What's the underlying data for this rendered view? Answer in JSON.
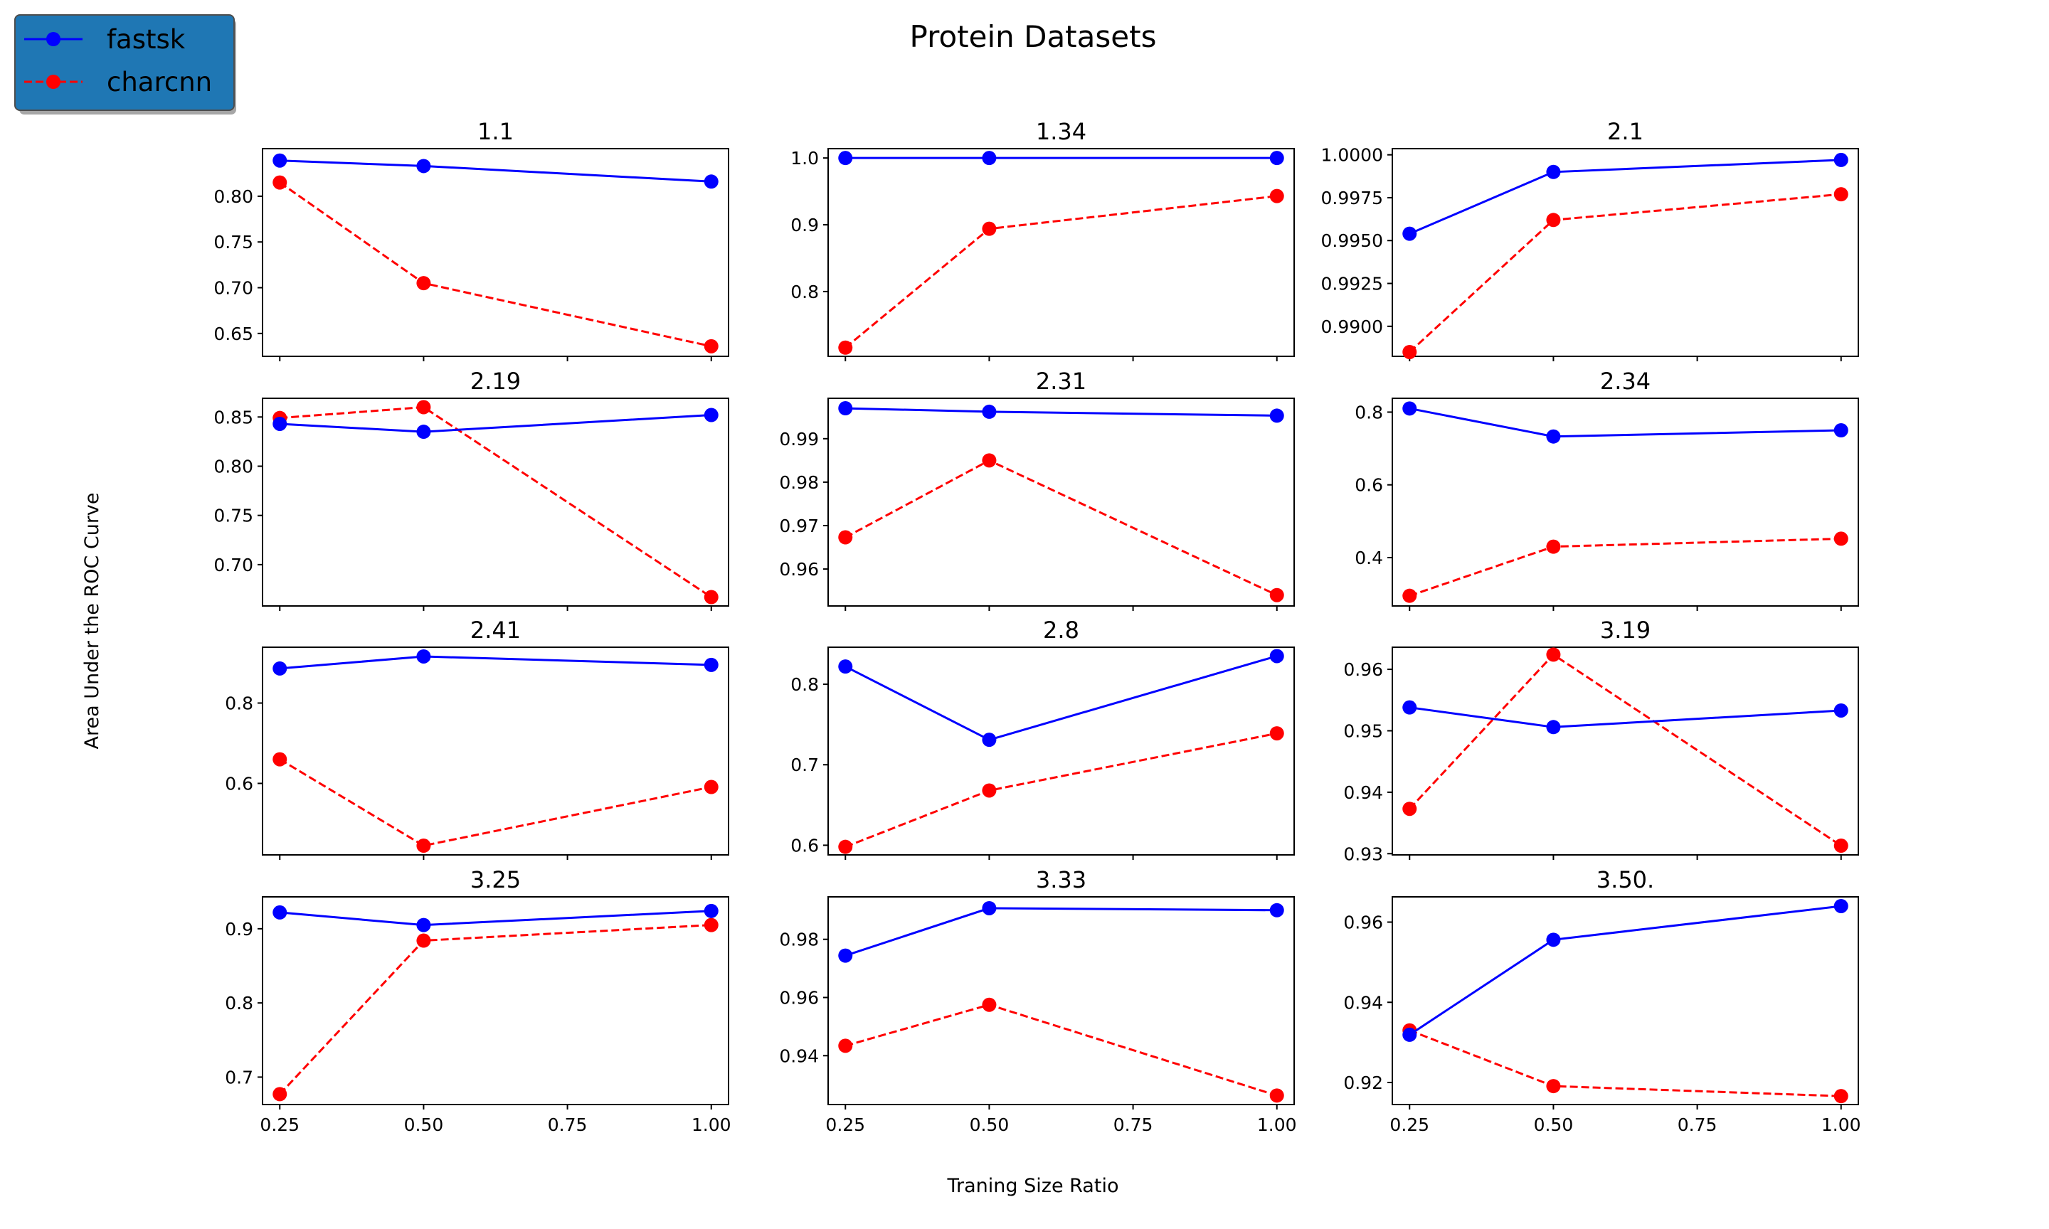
{
  "chart_data": {
    "type": "line",
    "title": "Protein Datasets",
    "xlabel": "Traning Size Ratio",
    "ylabel": "Area Under the ROC Curve",
    "x": [
      0.25,
      0.5,
      1.0
    ],
    "xlim": [
      0.22,
      1.03
    ],
    "xticks": [
      0.25,
      0.5,
      0.75,
      1.0
    ],
    "xtick_labels": [
      "0.25",
      "0.50",
      "0.75",
      "1.00"
    ],
    "legend": {
      "placement": "top-left",
      "entries": [
        {
          "name": "fastsk",
          "color": "#0000ff",
          "style": "solid"
        },
        {
          "name": "charcnn",
          "color": "#ff0000",
          "style": "dashed"
        }
      ]
    },
    "subplots": [
      {
        "title": "1.1",
        "ylim": [
          0.625,
          0.852
        ],
        "yticks": [
          0.65,
          0.7,
          0.75,
          0.8
        ],
        "ytick_labels": [
          "0.65",
          "0.70",
          "0.75",
          "0.80"
        ],
        "series": [
          {
            "name": "fastsk",
            "values": [
              0.839,
              0.833,
              0.816
            ]
          },
          {
            "name": "charcnn",
            "values": [
              0.815,
              0.705,
              0.636
            ]
          }
        ]
      },
      {
        "title": "1.34",
        "ylim": [
          0.703,
          1.014
        ],
        "yticks": [
          0.8,
          0.9,
          1.0
        ],
        "ytick_labels": [
          "0.8",
          "0.9",
          "1.0"
        ],
        "series": [
          {
            "name": "fastsk",
            "values": [
              1.0,
              1.0,
              1.0
            ]
          },
          {
            "name": "charcnn",
            "values": [
              0.716,
              0.894,
              0.943
            ]
          }
        ]
      },
      {
        "title": "2.1",
        "ylim": [
          0.98825,
          1.00036
        ],
        "yticks": [
          0.99,
          0.9925,
          0.995,
          0.9975,
          1.0
        ],
        "ytick_labels": [
          "0.9900",
          "0.9925",
          "0.9950",
          "0.9975",
          "1.0000"
        ],
        "series": [
          {
            "name": "fastsk",
            "values": [
              0.9954,
              0.999,
              0.9997
            ]
          },
          {
            "name": "charcnn",
            "values": [
              0.9885,
              0.9962,
              0.9977
            ]
          }
        ]
      },
      {
        "title": "2.19",
        "ylim": [
          0.658,
          0.869
        ],
        "yticks": [
          0.7,
          0.75,
          0.8,
          0.85
        ],
        "ytick_labels": [
          "0.70",
          "0.75",
          "0.80",
          "0.85"
        ],
        "series": [
          {
            "name": "fastsk",
            "values": [
              0.843,
              0.835,
              0.852
            ]
          },
          {
            "name": "charcnn",
            "values": [
              0.849,
              0.86,
              0.667
            ]
          }
        ]
      },
      {
        "title": "2.31",
        "ylim": [
          0.9515,
          0.9993
        ],
        "yticks": [
          0.96,
          0.97,
          0.98,
          0.99
        ],
        "ytick_labels": [
          "0.96",
          "0.97",
          "0.98",
          "0.99"
        ],
        "series": [
          {
            "name": "fastsk",
            "values": [
              0.997,
              0.9962,
              0.9953
            ]
          },
          {
            "name": "charcnn",
            "values": [
              0.9673,
              0.985,
              0.954
            ]
          }
        ]
      },
      {
        "title": "2.34",
        "ylim": [
          0.267,
          0.838
        ],
        "yticks": [
          0.4,
          0.6,
          0.8
        ],
        "ytick_labels": [
          "0.4",
          "0.6",
          "0.8"
        ],
        "series": [
          {
            "name": "fastsk",
            "values": [
              0.81,
              0.733,
              0.75
            ]
          },
          {
            "name": "charcnn",
            "values": [
              0.295,
              0.43,
              0.452
            ]
          }
        ]
      },
      {
        "title": "2.41",
        "ylim": [
          0.422,
          0.939
        ],
        "yticks": [
          0.6,
          0.8
        ],
        "ytick_labels": [
          "0.6",
          "0.8"
        ],
        "series": [
          {
            "name": "fastsk",
            "values": [
              0.886,
              0.916,
              0.895
            ]
          },
          {
            "name": "charcnn",
            "values": [
              0.66,
              0.445,
              0.591
            ]
          }
        ]
      },
      {
        "title": "2.8",
        "ylim": [
          0.588,
          0.846
        ],
        "yticks": [
          0.6,
          0.7,
          0.8
        ],
        "ytick_labels": [
          "0.6",
          "0.7",
          "0.8"
        ],
        "series": [
          {
            "name": "fastsk",
            "values": [
              0.822,
              0.731,
              0.835
            ]
          },
          {
            "name": "charcnn",
            "values": [
              0.598,
              0.668,
              0.739
            ]
          }
        ]
      },
      {
        "title": "3.19",
        "ylim": [
          0.9298,
          0.9636
        ],
        "yticks": [
          0.93,
          0.94,
          0.95,
          0.96
        ],
        "ytick_labels": [
          "0.93",
          "0.94",
          "0.95",
          "0.96"
        ],
        "series": [
          {
            "name": "fastsk",
            "values": [
              0.9538,
              0.9506,
              0.9533
            ]
          },
          {
            "name": "charcnn",
            "values": [
              0.9373,
              0.9624,
              0.9313
            ]
          }
        ]
      },
      {
        "title": "3.25",
        "ylim": [
          0.663,
          0.943
        ],
        "yticks": [
          0.7,
          0.8,
          0.9
        ],
        "ytick_labels": [
          "0.7",
          "0.8",
          "0.9"
        ],
        "series": [
          {
            "name": "fastsk",
            "values": [
              0.922,
              0.905,
              0.924
            ]
          },
          {
            "name": "charcnn",
            "values": [
              0.677,
              0.884,
              0.905
            ]
          }
        ]
      },
      {
        "title": "3.33",
        "ylim": [
          0.9232,
          0.9946
        ],
        "yticks": [
          0.94,
          0.96,
          0.98
        ],
        "ytick_labels": [
          "0.94",
          "0.96",
          "0.98"
        ],
        "series": [
          {
            "name": "fastsk",
            "values": [
              0.9744,
              0.9907,
              0.99
            ]
          },
          {
            "name": "charcnn",
            "values": [
              0.9434,
              0.9575,
              0.9263
            ]
          }
        ]
      },
      {
        "title": "3.50.",
        "ylim": [
          0.9145,
          0.9663
        ],
        "yticks": [
          0.92,
          0.94,
          0.96
        ],
        "ytick_labels": [
          "0.92",
          "0.94",
          "0.96"
        ],
        "series": [
          {
            "name": "fastsk",
            "values": [
              0.9319,
              0.9556,
              0.964
            ]
          },
          {
            "name": "charcnn",
            "values": [
              0.933,
              0.9191,
              0.9166
            ]
          }
        ]
      }
    ]
  }
}
